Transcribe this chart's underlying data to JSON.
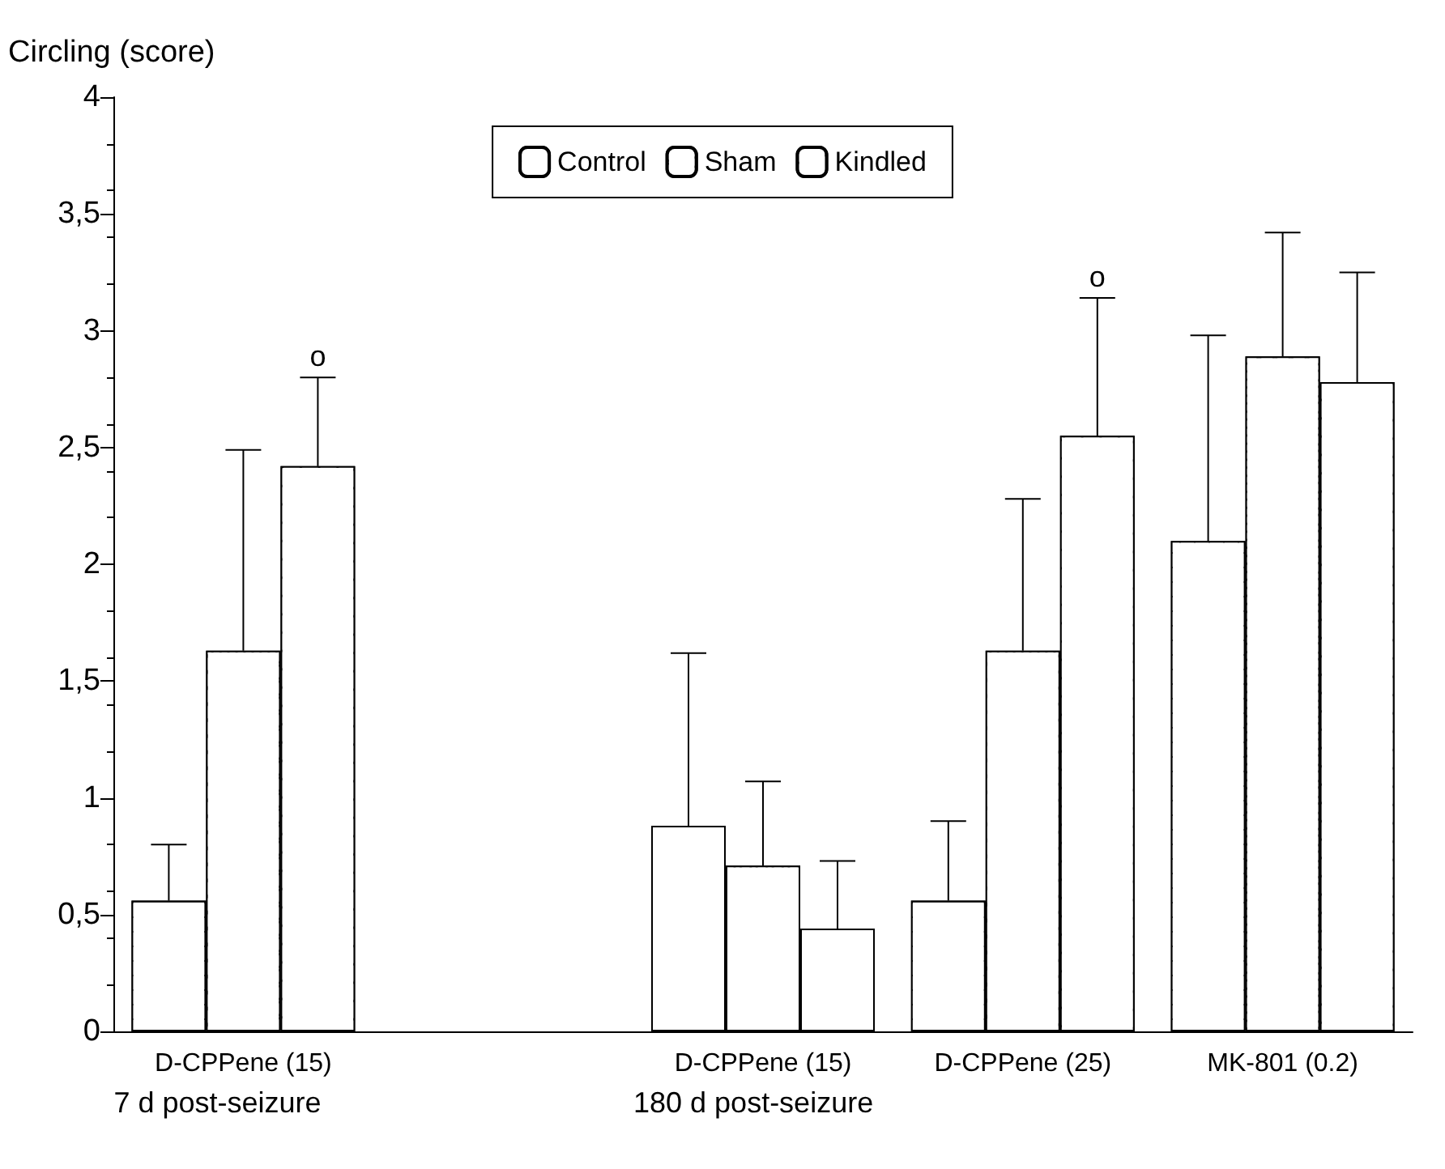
{
  "chart_data": {
    "type": "bar",
    "ylabel": "Circling (score)",
    "categories": [
      "D-CPPene (15)",
      null,
      "D-CPPene (15)",
      "D-CPPene (25)",
      "MK-801 (0.2)"
    ],
    "series": [
      {
        "name": "Control",
        "color": "#ffffff",
        "values": [
          0.56,
          null,
          0.88,
          0.56,
          2.1
        ],
        "errors": [
          [
            0.56,
            0.8
          ],
          null,
          [
            0.88,
            1.62
          ],
          [
            0.56,
            0.9
          ],
          [
            2.1,
            2.98
          ]
        ]
      },
      {
        "name": "Sham",
        "color": "#ffffff",
        "values": [
          1.63,
          null,
          0.71,
          1.63,
          2.89
        ],
        "errors": [
          [
            1.63,
            2.49
          ],
          null,
          [
            0.71,
            1.07
          ],
          [
            1.63,
            2.28
          ],
          [
            2.89,
            3.42
          ]
        ]
      },
      {
        "name": "Kindled",
        "color": "#ffffff",
        "values": [
          2.42,
          null,
          0.44,
          2.55,
          2.78
        ],
        "errors": [
          [
            2.42,
            2.8
          ],
          null,
          [
            0.44,
            0.73
          ],
          [
            2.55,
            3.14
          ],
          [
            2.78,
            3.25
          ]
        ]
      }
    ],
    "ylim": [
      0,
      4
    ],
    "yticks": [
      0,
      {
        "value": 0.5,
        "label": "0,5"
      },
      1,
      {
        "value": 1.5,
        "label": "1,5"
      },
      2,
      {
        "value": 2.5,
        "label": "2,5"
      },
      3,
      {
        "value": 3.5,
        "label": "3,5"
      },
      4
    ],
    "grid": false,
    "legend": "top",
    "annotations": [
      "o",
      "o",
      "7 d post-seizure",
      "180 d post-seizure"
    ]
  }
}
